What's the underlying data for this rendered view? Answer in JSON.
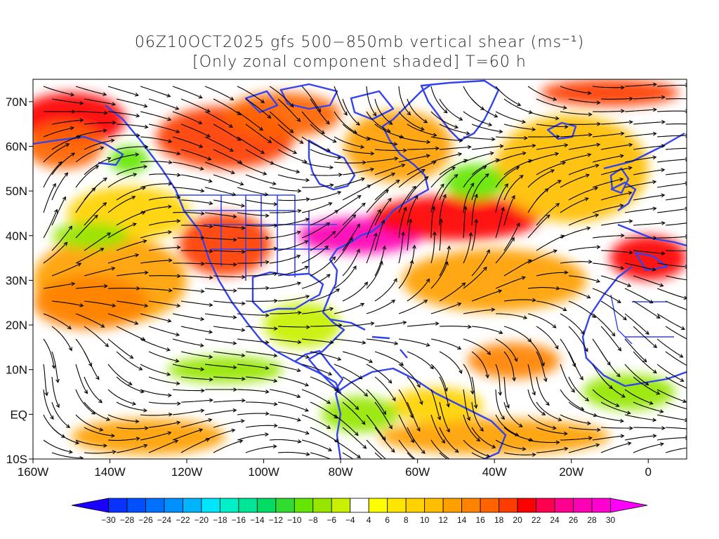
{
  "title": {
    "line1": "06Z10OCT2025 gfs 500−850mb vertical shear (ms⁻¹)",
    "line2": "[Only zonal component shaded] T=60 h"
  },
  "map": {
    "lon_range": [
      -160,
      10
    ],
    "lat_range": [
      -10,
      75
    ],
    "lat_ticks": [
      {
        "value": 70,
        "label": "70N"
      },
      {
        "value": 60,
        "label": "60N"
      },
      {
        "value": 50,
        "label": "50N"
      },
      {
        "value": 40,
        "label": "40N"
      },
      {
        "value": 30,
        "label": "30N"
      },
      {
        "value": 20,
        "label": "20N"
      },
      {
        "value": 10,
        "label": "10N"
      },
      {
        "value": 0,
        "label": "EQ"
      },
      {
        "value": -10,
        "label": "10S"
      }
    ],
    "lon_ticks": [
      {
        "value": -160,
        "label": "160W"
      },
      {
        "value": -140,
        "label": "140W"
      },
      {
        "value": -120,
        "label": "120W"
      },
      {
        "value": -100,
        "label": "100W"
      },
      {
        "value": -80,
        "label": "80W"
      },
      {
        "value": -60,
        "label": "60W"
      },
      {
        "value": -40,
        "label": "40W"
      },
      {
        "value": -20,
        "label": "20W"
      },
      {
        "value": 0,
        "label": "0"
      }
    ],
    "coastline_color": "#3344ee",
    "streamline_color": "#000000"
  },
  "colorbar": {
    "labels": [
      "-30",
      "-28",
      "-26",
      "-24",
      "-22",
      "-20",
      "-18",
      "-16",
      "-14",
      "-12",
      "-10",
      "-8",
      "-6",
      "-4",
      "4",
      "6",
      "8",
      "10",
      "12",
      "14",
      "16",
      "18",
      "20",
      "22",
      "24",
      "26",
      "28",
      "30"
    ],
    "colors": [
      "#1a00ff",
      "#0a32ff",
      "#0050ff",
      "#0070ff",
      "#0090ff",
      "#00b4ff",
      "#00e6ff",
      "#00f0c8",
      "#00e696",
      "#00dc64",
      "#30dc30",
      "#64e600",
      "#96e600",
      "#c8f000",
      "#ffffff",
      "#ffff00",
      "#ffe600",
      "#ffd200",
      "#ffbe00",
      "#ffa000",
      "#ff8200",
      "#ff6400",
      "#ff3c00",
      "#ff0000",
      "#ff0050",
      "#ff0090",
      "#ff00b4",
      "#ff00d0",
      "#ff00ff"
    ]
  },
  "shear_regions": [
    {
      "lon": -150,
      "lat": 66,
      "rx": 14,
      "ry": 6,
      "level": 20
    },
    {
      "lon": -152,
      "lat": 60,
      "rx": 10,
      "ry": 5,
      "level": 16
    },
    {
      "lon": -110,
      "lat": 62,
      "rx": 18,
      "ry": 7,
      "level": 18
    },
    {
      "lon": -95,
      "lat": 67,
      "rx": 15,
      "ry": 5,
      "level": 16
    },
    {
      "lon": -75,
      "lat": 40,
      "rx": 16,
      "ry": 4,
      "level": 26
    },
    {
      "lon": -50,
      "lat": 44,
      "rx": 22,
      "ry": 5,
      "level": 20
    },
    {
      "lon": -40,
      "lat": 30,
      "rx": 24,
      "ry": 7,
      "level": 12
    },
    {
      "lon": -110,
      "lat": 38,
      "rx": 12,
      "ry": 7,
      "level": 18
    },
    {
      "lon": -140,
      "lat": 30,
      "rx": 20,
      "ry": 10,
      "level": 12
    },
    {
      "lon": -135,
      "lat": 45,
      "rx": 16,
      "ry": 6,
      "level": 8
    },
    {
      "lon": -145,
      "lat": 25,
      "rx": 15,
      "ry": 6,
      "level": 14
    },
    {
      "lon": -130,
      "lat": -5,
      "rx": 20,
      "ry": 4,
      "level": 12
    },
    {
      "lon": -40,
      "lat": -5,
      "rx": 30,
      "ry": 4,
      "level": 12
    },
    {
      "lon": -65,
      "lat": 60,
      "rx": 14,
      "ry": 8,
      "level": 12
    },
    {
      "lon": -20,
      "lat": 55,
      "rx": 20,
      "ry": 12,
      "level": 10
    },
    {
      "lon": 0,
      "lat": 35,
      "rx": 10,
      "ry": 5,
      "level": 20
    },
    {
      "lon": -10,
      "lat": 72,
      "rx": 18,
      "ry": 3,
      "level": 18
    },
    {
      "lon": -35,
      "lat": 12,
      "rx": 12,
      "ry": 4,
      "level": 14
    },
    {
      "lon": -55,
      "lat": 2,
      "rx": 12,
      "ry": 4,
      "level": 8
    },
    {
      "lon": -75,
      "lat": 0,
      "rx": 10,
      "ry": 4,
      "level": -8
    },
    {
      "lon": -145,
      "lat": 40,
      "rx": 10,
      "ry": 3,
      "level": -8
    },
    {
      "lon": -110,
      "lat": 10,
      "rx": 15,
      "ry": 3,
      "level": -8
    },
    {
      "lon": -90,
      "lat": 20,
      "rx": 10,
      "ry": 5,
      "level": -6
    },
    {
      "lon": -45,
      "lat": 52,
      "rx": 8,
      "ry": 4,
      "level": -10
    },
    {
      "lon": -5,
      "lat": 5,
      "rx": 12,
      "ry": 4,
      "level": -8
    },
    {
      "lon": -135,
      "lat": 57,
      "rx": 5,
      "ry": 3,
      "level": -10
    }
  ]
}
